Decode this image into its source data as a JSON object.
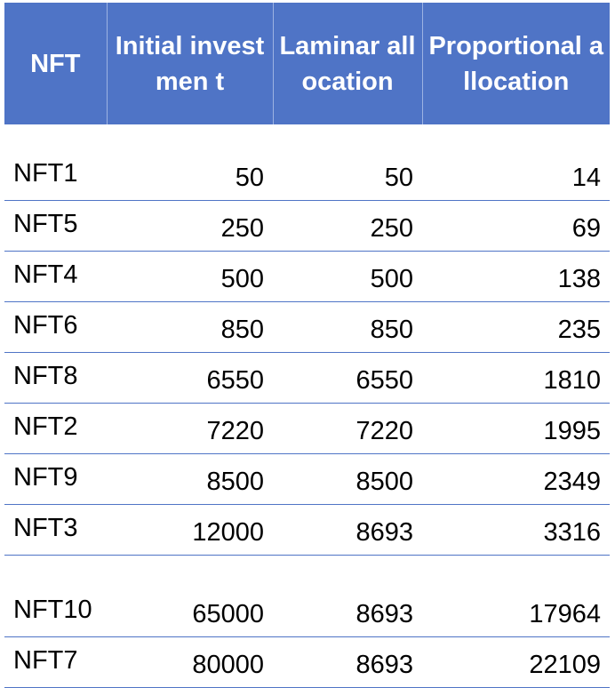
{
  "table": {
    "headers": {
      "nft": "NFT",
      "initial": "Initial investmen t",
      "laminar": "Laminar allocation",
      "proportional": "Proportional allocation"
    },
    "rows": [
      {
        "nft": "NFT1",
        "initial": "50",
        "laminar": "50",
        "proportional": "14"
      },
      {
        "nft": "NFT5",
        "initial": "250",
        "laminar": "250",
        "proportional": "69"
      },
      {
        "nft": "NFT4",
        "initial": "500",
        "laminar": "500",
        "proportional": "138"
      },
      {
        "nft": "NFT6",
        "initial": "850",
        "laminar": "850",
        "proportional": "235"
      },
      {
        "nft": "NFT8",
        "initial": "6550",
        "laminar": "6550",
        "proportional": "1810"
      },
      {
        "nft": "NFT2",
        "initial": "7220",
        "laminar": "7220",
        "proportional": "1995"
      },
      {
        "nft": "NFT9",
        "initial": "8500",
        "laminar": "8500",
        "proportional": "2349"
      },
      {
        "nft": "NFT3",
        "initial": "12000",
        "laminar": "8693",
        "proportional": "3316"
      },
      {
        "nft": "NFT10",
        "initial": "65000",
        "laminar": "8693",
        "proportional": "17964"
      },
      {
        "nft": "NFT7",
        "initial": "80000",
        "laminar": "8693",
        "proportional": "22109"
      }
    ]
  },
  "colors": {
    "header_bg": "#4f74c6",
    "header_text": "#ffffff",
    "row_border": "#4f74c6"
  }
}
